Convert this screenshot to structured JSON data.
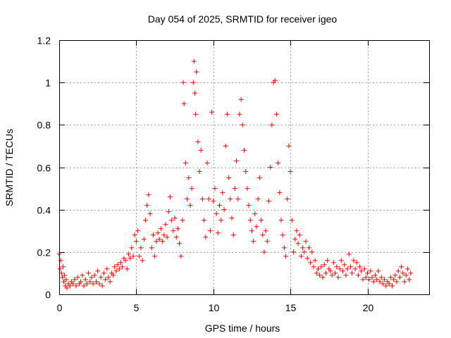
{
  "chart_data": {
    "type": "scatter",
    "title": "Day 054 of 2025, SRMTID for receiver igeo",
    "xlabel": "GPS time / hours",
    "ylabel": "SRMTID / TECUs",
    "xlim": [
      0,
      24
    ],
    "ylim": [
      0,
      1.2
    ],
    "x_ticks": [
      0,
      5,
      10,
      15,
      20
    ],
    "x_tick_labels": [
      "0",
      "5",
      "10",
      "15",
      "20"
    ],
    "y_ticks": [
      0,
      0.2,
      0.4,
      0.6,
      0.8,
      1.0,
      1.2
    ],
    "y_tick_labels": [
      "0",
      "0.2",
      "0.4",
      "0.6",
      "0.8",
      "1",
      "1.2"
    ],
    "grid": true,
    "marker": "+",
    "color": "#ff0000",
    "series": [
      {
        "name": "SRMTID",
        "points": [
          [
            0.0,
            0.19
          ],
          [
            0.05,
            0.12
          ],
          [
            0.1,
            0.16
          ],
          [
            0.15,
            0.1
          ],
          [
            0.2,
            0.08
          ],
          [
            0.25,
            0.13
          ],
          [
            0.3,
            0.06
          ],
          [
            0.35,
            0.09
          ],
          [
            0.4,
            0.04
          ],
          [
            0.45,
            0.07
          ],
          [
            0.5,
            0.03
          ],
          [
            0.6,
            0.05
          ],
          [
            0.7,
            0.04
          ],
          [
            0.8,
            0.06
          ],
          [
            0.9,
            0.05
          ],
          [
            1.0,
            0.07
          ],
          [
            1.1,
            0.04
          ],
          [
            1.2,
            0.08
          ],
          [
            1.3,
            0.05
          ],
          [
            1.4,
            0.06
          ],
          [
            1.5,
            0.09
          ],
          [
            1.6,
            0.04
          ],
          [
            1.7,
            0.07
          ],
          [
            1.8,
            0.05
          ],
          [
            1.9,
            0.1
          ],
          [
            2.0,
            0.06
          ],
          [
            2.1,
            0.08
          ],
          [
            2.2,
            0.05
          ],
          [
            2.3,
            0.09
          ],
          [
            2.4,
            0.06
          ],
          [
            2.5,
            0.11
          ],
          [
            2.6,
            0.05
          ],
          [
            2.7,
            0.08
          ],
          [
            2.8,
            0.04
          ],
          [
            2.9,
            0.1
          ],
          [
            3.0,
            0.07
          ],
          [
            3.1,
            0.12
          ],
          [
            3.2,
            0.08
          ],
          [
            3.3,
            0.06
          ],
          [
            3.4,
            0.1
          ],
          [
            3.5,
            0.09
          ],
          [
            3.6,
            0.13
          ],
          [
            3.7,
            0.11
          ],
          [
            3.8,
            0.14
          ],
          [
            3.9,
            0.12
          ],
          [
            4.0,
            0.15
          ],
          [
            4.1,
            0.13
          ],
          [
            4.2,
            0.17
          ],
          [
            4.3,
            0.16
          ],
          [
            4.4,
            0.12
          ],
          [
            4.5,
            0.19
          ],
          [
            4.6,
            0.17
          ],
          [
            4.7,
            0.22
          ],
          [
            4.8,
            0.18
          ],
          [
            4.9,
            0.28
          ],
          [
            5.0,
            0.25
          ],
          [
            5.1,
            0.3
          ],
          [
            5.2,
            0.18
          ],
          [
            5.3,
            0.22
          ],
          [
            5.4,
            0.16
          ],
          [
            5.5,
            0.26
          ],
          [
            5.6,
            0.35
          ],
          [
            5.7,
            0.42
          ],
          [
            5.8,
            0.47
          ],
          [
            5.9,
            0.38
          ],
          [
            6.0,
            0.22
          ],
          [
            6.1,
            0.28
          ],
          [
            6.2,
            0.18
          ],
          [
            6.3,
            0.25
          ],
          [
            6.4,
            0.29
          ],
          [
            6.5,
            0.26
          ],
          [
            6.6,
            0.31
          ],
          [
            6.7,
            0.25
          ],
          [
            6.8,
            0.28
          ],
          [
            6.9,
            0.33
          ],
          [
            7.0,
            0.27
          ],
          [
            7.1,
            0.39
          ],
          [
            7.2,
            0.46
          ],
          [
            7.3,
            0.35
          ],
          [
            7.4,
            0.3
          ],
          [
            7.5,
            0.36
          ],
          [
            7.6,
            0.27
          ],
          [
            7.7,
            0.31
          ],
          [
            7.8,
            0.24
          ],
          [
            7.9,
            0.18
          ],
          [
            8.0,
            0.35
          ],
          [
            8.05,
            1.0
          ],
          [
            8.1,
            0.9
          ],
          [
            8.2,
            0.62
          ],
          [
            8.3,
            0.45
          ],
          [
            8.4,
            0.55
          ],
          [
            8.5,
            0.42
          ],
          [
            8.6,
            0.5
          ],
          [
            8.7,
            1.0
          ],
          [
            8.75,
            1.1
          ],
          [
            8.8,
            0.95
          ],
          [
            8.85,
            0.85
          ],
          [
            8.9,
            1.05
          ],
          [
            9.0,
            0.72
          ],
          [
            9.1,
            0.58
          ],
          [
            9.2,
            0.68
          ],
          [
            9.3,
            0.45
          ],
          [
            9.4,
            0.35
          ],
          [
            9.5,
            0.27
          ],
          [
            9.6,
            0.62
          ],
          [
            9.7,
            0.45
          ],
          [
            9.8,
            0.3
          ],
          [
            9.9,
            0.86
          ],
          [
            10.0,
            0.44
          ],
          [
            10.1,
            0.5
          ],
          [
            10.2,
            0.38
          ],
          [
            10.3,
            0.29
          ],
          [
            10.4,
            0.42
          ],
          [
            10.5,
            0.35
          ],
          [
            10.6,
            0.48
          ],
          [
            10.7,
            0.4
          ],
          [
            10.8,
            0.7
          ],
          [
            10.9,
            0.85
          ],
          [
            11.0,
            0.55
          ],
          [
            11.1,
            0.45
          ],
          [
            11.2,
            0.36
          ],
          [
            11.3,
            0.28
          ],
          [
            11.4,
            0.5
          ],
          [
            11.5,
            0.63
          ],
          [
            11.6,
            0.45
          ],
          [
            11.7,
            0.85
          ],
          [
            11.8,
            0.92
          ],
          [
            11.9,
            0.8
          ],
          [
            12.0,
            0.68
          ],
          [
            12.1,
            0.58
          ],
          [
            12.2,
            0.5
          ],
          [
            12.3,
            0.42
          ],
          [
            12.4,
            0.35
          ],
          [
            12.5,
            0.3
          ],
          [
            12.6,
            0.25
          ],
          [
            12.7,
            0.38
          ],
          [
            12.8,
            0.32
          ],
          [
            12.9,
            0.45
          ],
          [
            13.0,
            0.55
          ],
          [
            13.1,
            0.35
          ],
          [
            13.2,
            0.28
          ],
          [
            13.3,
            0.2
          ],
          [
            13.4,
            0.3
          ],
          [
            13.5,
            0.25
          ],
          [
            13.6,
            0.44
          ],
          [
            13.7,
            0.6
          ],
          [
            13.8,
            0.8
          ],
          [
            13.9,
            1.0
          ],
          [
            14.0,
            1.01
          ],
          [
            14.1,
            0.85
          ],
          [
            14.2,
            0.62
          ],
          [
            14.3,
            0.48
          ],
          [
            14.4,
            0.35
          ],
          [
            14.5,
            0.28
          ],
          [
            14.6,
            0.22
          ],
          [
            14.7,
            0.18
          ],
          [
            14.8,
            0.45
          ],
          [
            14.9,
            0.7
          ],
          [
            15.0,
            0.58
          ],
          [
            15.1,
            0.35
          ],
          [
            15.2,
            0.2
          ],
          [
            15.3,
            0.26
          ],
          [
            15.4,
            0.3
          ],
          [
            15.5,
            0.24
          ],
          [
            15.6,
            0.28
          ],
          [
            15.7,
            0.18
          ],
          [
            15.8,
            0.22
          ],
          [
            15.9,
            0.2
          ],
          [
            16.0,
            0.25
          ],
          [
            16.1,
            0.17
          ],
          [
            16.2,
            0.22
          ],
          [
            16.3,
            0.15
          ],
          [
            16.4,
            0.2
          ],
          [
            16.5,
            0.13
          ],
          [
            16.6,
            0.16
          ],
          [
            16.7,
            0.1
          ],
          [
            16.8,
            0.12
          ],
          [
            16.9,
            0.09
          ],
          [
            17.0,
            0.13
          ],
          [
            17.1,
            0.08
          ],
          [
            17.2,
            0.14
          ],
          [
            17.3,
            0.1
          ],
          [
            17.4,
            0.16
          ],
          [
            17.5,
            0.12
          ],
          [
            17.6,
            0.11
          ],
          [
            17.7,
            0.09
          ],
          [
            17.8,
            0.15
          ],
          [
            17.9,
            0.1
          ],
          [
            18.0,
            0.13
          ],
          [
            18.1,
            0.08
          ],
          [
            18.2,
            0.12
          ],
          [
            18.3,
            0.16
          ],
          [
            18.4,
            0.11
          ],
          [
            18.5,
            0.14
          ],
          [
            18.6,
            0.09
          ],
          [
            18.7,
            0.12
          ],
          [
            18.8,
            0.19
          ],
          [
            18.9,
            0.13
          ],
          [
            19.0,
            0.1
          ],
          [
            19.1,
            0.16
          ],
          [
            19.2,
            0.12
          ],
          [
            19.3,
            0.15
          ],
          [
            19.4,
            0.09
          ],
          [
            19.5,
            0.13
          ],
          [
            19.6,
            0.11
          ],
          [
            19.7,
            0.07
          ],
          [
            19.8,
            0.12
          ],
          [
            19.9,
            0.08
          ],
          [
            20.0,
            0.1
          ],
          [
            20.1,
            0.07
          ],
          [
            20.2,
            0.11
          ],
          [
            20.3,
            0.08
          ],
          [
            20.4,
            0.06
          ],
          [
            20.5,
            0.09
          ],
          [
            20.6,
            0.07
          ],
          [
            20.7,
            0.11
          ],
          [
            20.8,
            0.06
          ],
          [
            20.9,
            0.08
          ],
          [
            21.0,
            0.05
          ],
          [
            21.1,
            0.07
          ],
          [
            21.2,
            0.04
          ],
          [
            21.3,
            0.06
          ],
          [
            21.4,
            0.05
          ],
          [
            21.5,
            0.08
          ],
          [
            21.6,
            0.04
          ],
          [
            21.7,
            0.07
          ],
          [
            21.8,
            0.09
          ],
          [
            21.9,
            0.06
          ],
          [
            22.0,
            0.11
          ],
          [
            22.1,
            0.08
          ],
          [
            22.2,
            0.13
          ],
          [
            22.3,
            0.1
          ],
          [
            22.4,
            0.06
          ],
          [
            22.5,
            0.09
          ],
          [
            22.6,
            0.12
          ],
          [
            22.7,
            0.07
          ],
          [
            22.8,
            0.1
          ]
        ]
      }
    ]
  }
}
